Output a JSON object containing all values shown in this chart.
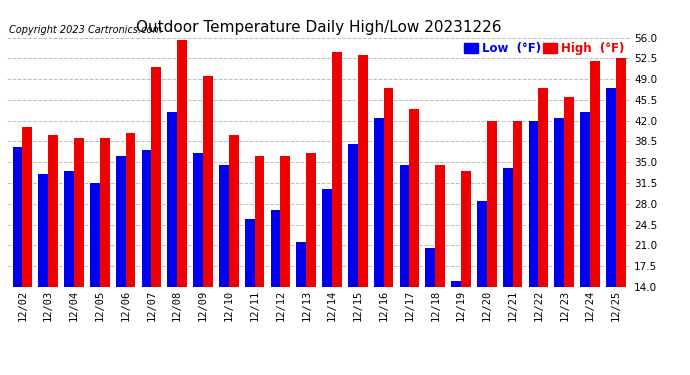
{
  "title": "Outdoor Temperature Daily High/Low 20231226",
  "copyright": "Copyright 2023 Cartronics.com",
  "legend_low_label": "Low  (°F)",
  "legend_high_label": "High  (°F)",
  "categories": [
    "12/02",
    "12/03",
    "12/04",
    "12/05",
    "12/06",
    "12/07",
    "12/08",
    "12/09",
    "12/10",
    "12/11",
    "12/12",
    "12/13",
    "12/14",
    "12/15",
    "12/16",
    "12/17",
    "12/18",
    "12/19",
    "12/20",
    "12/21",
    "12/22",
    "12/23",
    "12/24",
    "12/25"
  ],
  "high_values": [
    41.0,
    39.5,
    39.0,
    39.0,
    40.0,
    51.0,
    55.5,
    49.5,
    39.5,
    36.0,
    36.0,
    36.5,
    53.5,
    53.0,
    47.5,
    44.0,
    34.5,
    33.5,
    42.0,
    42.0,
    47.5,
    46.0,
    52.0,
    52.5
  ],
  "low_values": [
    37.5,
    33.0,
    33.5,
    31.5,
    36.0,
    37.0,
    43.5,
    36.5,
    34.5,
    25.5,
    27.0,
    21.5,
    30.5,
    38.0,
    42.5,
    34.5,
    20.5,
    15.0,
    28.5,
    34.0,
    42.0,
    42.5,
    43.5,
    47.5
  ],
  "low_color": "#0000ee",
  "high_color": "#ee0000",
  "bg_color": "#ffffff",
  "grid_color": "#bbbbbb",
  "ylim_min": 14.0,
  "ylim_max": 56.0,
  "yticks": [
    14.0,
    17.5,
    21.0,
    24.5,
    28.0,
    31.5,
    35.0,
    38.5,
    42.0,
    45.5,
    49.0,
    52.5,
    56.0
  ],
  "title_fontsize": 11,
  "copyright_fontsize": 7,
  "tick_fontsize": 7.5,
  "legend_fontsize": 8.5,
  "bar_width": 0.38
}
